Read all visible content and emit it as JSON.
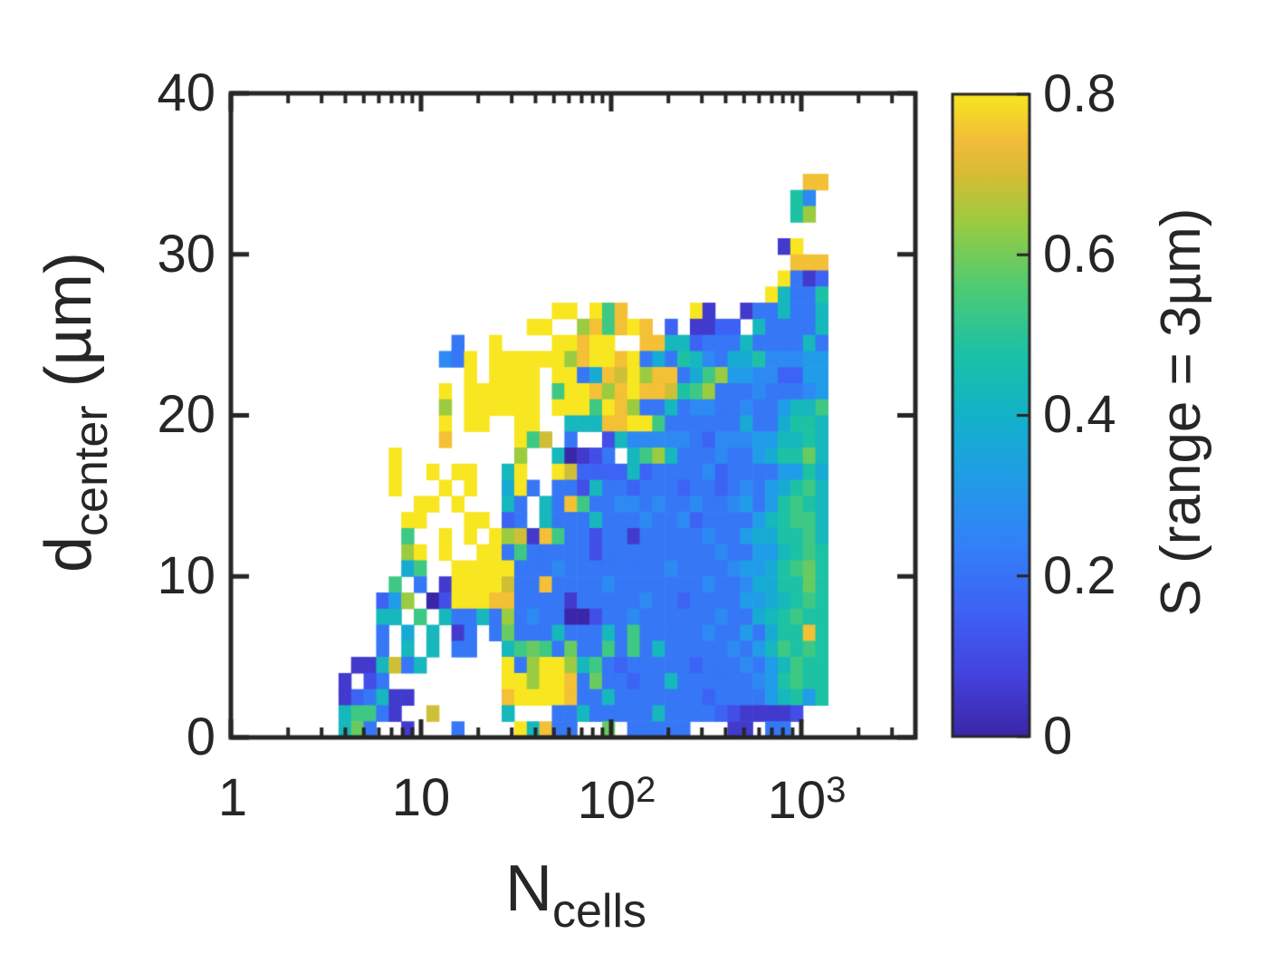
{
  "figure": {
    "background": "#ffffff",
    "axis_color": "#262626"
  },
  "chart_data": {
    "type": "heatmap",
    "title": "",
    "xlabel": {
      "base": "N",
      "sub": "cells"
    },
    "ylabel": {
      "base": "d",
      "sub": "center",
      "suffix": " (µm)"
    },
    "x_scale": "log",
    "x_range": [
      1,
      3981
    ],
    "y_range": [
      0,
      40
    ],
    "x_tick_values": [
      1,
      10,
      100,
      1000
    ],
    "x_tick_labels": [
      {
        "base": "1",
        "sup": ""
      },
      {
        "base": "10",
        "sup": ""
      },
      {
        "base": "10",
        "sup": "2"
      },
      {
        "base": "10",
        "sup": "3"
      }
    ],
    "y_tick_values": [
      40,
      30,
      20,
      10,
      0
    ],
    "y_tick_labels": [
      "40",
      "30",
      "20",
      "10",
      "0"
    ],
    "colorbar": {
      "label": "S (range = 3µm)",
      "range": [
        0,
        0.8
      ],
      "tick_values": [
        0.8,
        0.6,
        0.4,
        0.2,
        0
      ],
      "tick_labels": [
        "0.8",
        "0.6",
        "0.4",
        "0.2",
        "0"
      ]
    },
    "colormap_parula_stops": [
      [
        0.0,
        "#3a26a8"
      ],
      [
        0.1,
        "#4444e0"
      ],
      [
        0.2,
        "#3d63f5"
      ],
      [
        0.3,
        "#3381f7"
      ],
      [
        0.4,
        "#219ce8"
      ],
      [
        0.5,
        "#12b2c9"
      ],
      [
        0.6,
        "#1dc2a5"
      ],
      [
        0.7,
        "#4fcb73"
      ],
      [
        0.8,
        "#9bcb40"
      ],
      [
        0.875,
        "#d6bd35"
      ],
      [
        0.925,
        "#f2bb39"
      ],
      [
        1.0,
        "#f8e621"
      ]
    ],
    "grid": {
      "encoding": "each char is one bin; hex digit n means S = n/15*0.8 ('0'=0 dark blue ... 'f'=0.8 yellow); '.' = empty bin",
      "x_log10_start": 0.5,
      "x_log10_step": 0.066,
      "n_cols": 40,
      "y_top": 35,
      "y_bin_height_um": 1,
      "rows": [
        "......................................ee",
        ".....................................95.",
        ".....................................9c.",
        "........................................",
        "....................................1f..",
        ".....................................eee",
        "....................................f413",
        "...................................f8449",
        "..................ff.fae.....f1..1448448",
        "................ff..ceaefe.3.1133.844448",
        "..........4..f....ffeff..ee8834448444484",
        ".........54f.ffffffceffef474985477955566",
        "...........f.ffff.ff47edfcee47ac66553366",
        ".........f.ffffff.affecefeed9ac444544456",
        ".........c.ffffff.fffafec44845544544688a8",
        ".........f.ff..ff..888eeffa4444447447998",
        ".........e.....fad.4..285555543555668898",
        ".....f.........c..80124.8ac84445446799b8",
        ".....f..f.ff..8f..fd33338344445344446697",
        ".....f...f.f..7f4.44284434443443454679a8",
        ".......ff.f...84.84ea4455454454456469a98",
        "......ff...ff.34.84448444544534444689aa8",
        "......a..f.f.fcd1ea4424414444454467799a8",
        "......cf.f..ff4a4444424444444445446689a9",
        "......7a..fffff4445444444445444456679ab9",
        ".....a.4.1ffffd44e44445444444454457799b9",
        "....36c.02fffee44441444445443444466789a9",
        "....88.a.84484c4544002445444444544789a99",
        "....4.7.8.14.4b444844484a4444454464799e9",
        "....4.8.8.44..8aba4b44a4a48444445468a9a9",
        "..118d48......f4cffc8a434444434445468a99",
        ".1.24.........ffcffe4b443448444444569a99",
        ".134811.......effffe44844444443444468969",
        ".8aa41..d.....8...44844444844443211112..",
        ".8b4..1...4....f8e44..b.44444...11.44..."
      ]
    }
  }
}
